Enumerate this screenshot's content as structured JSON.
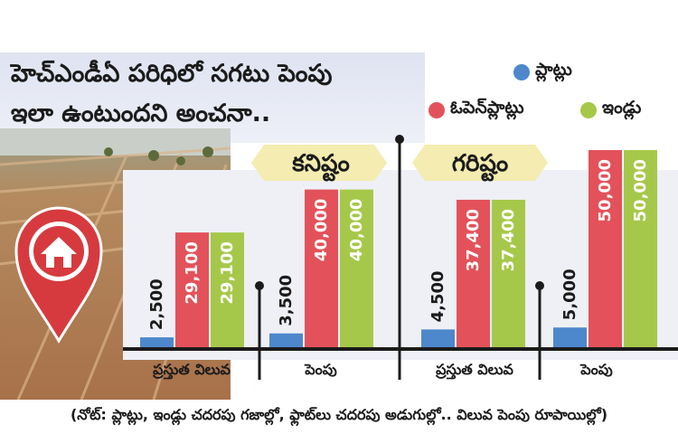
{
  "header": {
    "title_line_1": "హెచ్ఎండీఏ పరిధిలో సగటు పెంపు",
    "title_line_2": "ఇలా ఉంటుందని అంచనా.."
  },
  "colors": {
    "plots": "#4d88cc",
    "open_plots": "#e3525a",
    "houses": "#a6c84a",
    "banner": "#f4ecb0"
  },
  "chart_data": {
    "type": "bar",
    "groups": [
      {
        "label": "కనిష్టం",
        "categories": [
          "ప్రస్తుత విలువ",
          "పెంపు"
        ]
      },
      {
        "label": "గరిష్టం",
        "categories": [
          "ప్రస్తుత విలువ",
          "పెంపు"
        ]
      }
    ],
    "categories": [
      "ప్రస్తుత విలువ",
      "పెంపు",
      "ప్రస్తుత విలువ",
      "పెంపు"
    ],
    "series": [
      {
        "name": "ప్లాట్లు",
        "values": [
          2500,
          3500,
          4500,
          5000
        ],
        "labels": [
          "2,500",
          "3,500",
          "4,500",
          "5,000"
        ]
      },
      {
        "name": "ఓపెన్‌ప్లాట్లు",
        "values": [
          29100,
          40000,
          37400,
          50000
        ],
        "labels": [
          "29,100",
          "40,000",
          "37,400",
          "50,000"
        ]
      },
      {
        "name": "ఇండ్లు",
        "values": [
          29100,
          40000,
          37400,
          50000
        ],
        "labels": [
          "29,100",
          "40,000",
          "37,400",
          "50,000"
        ]
      }
    ],
    "ylim": [
      0,
      50000
    ],
    "legend": "top-right"
  },
  "note": "(నోట్: ప్లాట్లు, ఇండ్లు చదరపు గజాల్లో, ఫ్లాట్‌లు చదరపు అడుగుల్లో.. విలువ పెంపు రూపాయిల్లో)"
}
